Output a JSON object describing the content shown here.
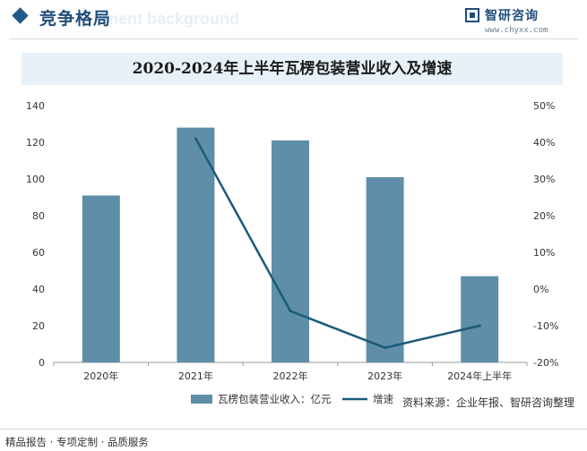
{
  "header": {
    "section_title": "竞争格局",
    "watermark_text": "ment background",
    "logo_name": "智研咨询",
    "logo_url": "www.chyxx.com"
  },
  "colors": {
    "bar": "#5f8ea8",
    "line": "#1b5a7a",
    "axis": "#999999",
    "title_bg": "#e8f1f8"
  },
  "chart_data": {
    "type": "bar",
    "title": "2020-2024年上半年瓦楞包装营业收入及增速",
    "categories": [
      "2020年",
      "2021年",
      "2022年",
      "2023年",
      "2024年上半年"
    ],
    "series": [
      {
        "name": "瓦楞包装营业收入：亿元",
        "type": "bar",
        "axis": "left",
        "values": [
          91,
          128,
          121,
          101,
          47
        ]
      },
      {
        "name": "增速",
        "type": "line",
        "axis": "right",
        "values": [
          null,
          41,
          -6,
          -16,
          -10
        ]
      }
    ],
    "y_left": {
      "min": 0,
      "max": 140,
      "ticks": [
        "0",
        "20",
        "40",
        "60",
        "80",
        "100",
        "120",
        "140"
      ]
    },
    "y_right": {
      "min": -20,
      "max": 50,
      "ticks": [
        "-20%",
        "-10%",
        "0%",
        "10%",
        "20%",
        "30%",
        "40%",
        "50%"
      ]
    },
    "legend_position": "bottom",
    "grid": false
  },
  "footer": {
    "source": "资料来源：企业年报、智研咨询整理",
    "left": "精品报告 · 专项定制 · 品质服务"
  }
}
